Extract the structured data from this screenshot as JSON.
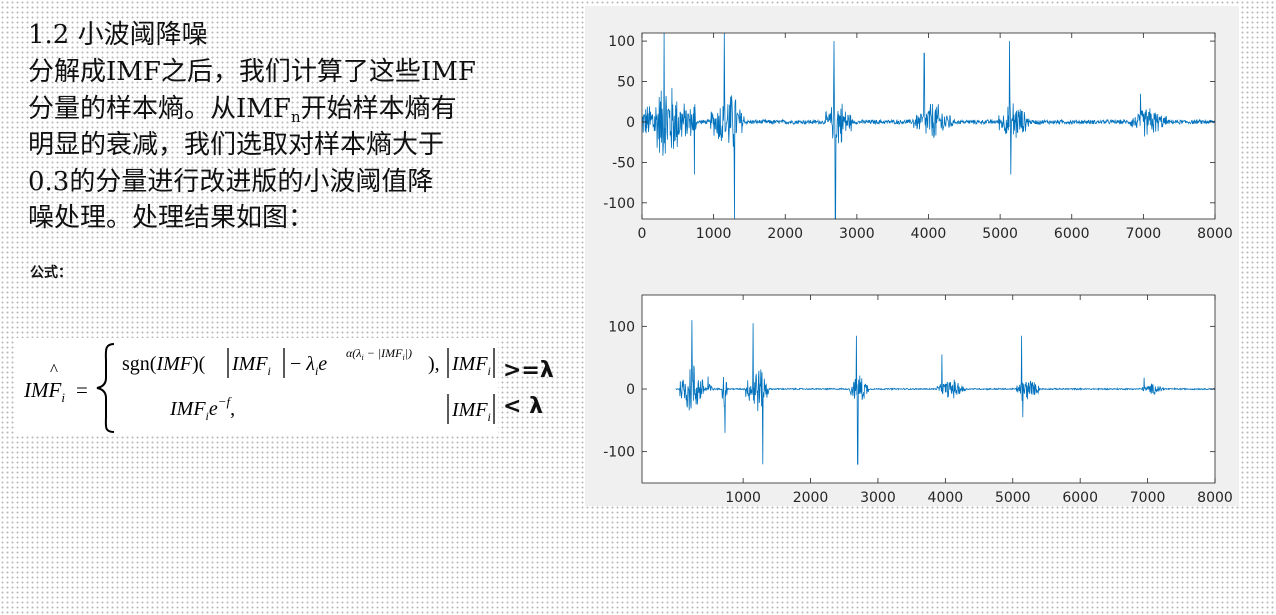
{
  "heading": "1.2 小波阈降噪",
  "paragraph": {
    "line1": "分解成IMF之后，我们计算了这些IMF",
    "line2_pre": "分量的样本熵。从IMF",
    "line2_sub": "n",
    "line2_post": "开始样本熵有",
    "line3": "明显的衰减，我们选取对样本熵大于",
    "line4": "0.3的分量进行改进版的小波阈值降",
    "line5": "噪处理。处理结果如图："
  },
  "formula_label": "公式：",
  "formula": {
    "lhs_pre": "IM",
    "lhs_hat": "F",
    "lhs_sub": "i",
    "case1_func": "sgn(",
    "case1_arg": "IMF",
    "case1_close": ")(",
    "case1_abs": "IMF",
    "case1_minus": "− ",
    "lambda": "λ",
    "exp_e": "e",
    "case1_tail": "),",
    "case2_base": "IMF",
    "case2_exp": "−f",
    "case2_comma": ",",
    "cond_abs": "IMF",
    "cond_ge": ">=λ",
    "cond_lt": "<  λ"
  },
  "chart_data": [
    {
      "type": "line",
      "title": "",
      "xlabel": "",
      "ylabel": "",
      "xlim": [
        0,
        8000
      ],
      "ylim": [
        -120,
        110
      ],
      "xticks": [
        0,
        1000,
        2000,
        3000,
        4000,
        5000,
        6000,
        7000,
        8000
      ],
      "yticks": [
        100,
        50,
        0,
        -50,
        -100
      ],
      "color": "#0072BD",
      "noise_floor": 3,
      "bursts": [
        {
          "x0": 0,
          "x1": 700,
          "amp": 55,
          "peak": 110,
          "peak_at": 310
        },
        {
          "x0": 700,
          "x1": 760,
          "amp": 40,
          "peak": -65,
          "peak_at": 730
        },
        {
          "x0": 960,
          "x1": 1430,
          "amp": 45,
          "peak": 110,
          "peak_at": 1150
        },
        {
          "x0": 1250,
          "x1": 1330,
          "amp": 60,
          "peak": -120,
          "peak_at": 1290
        },
        {
          "x0": 2560,
          "x1": 2920,
          "amp": 35,
          "peak": 100,
          "peak_at": 2680
        },
        {
          "x0": 2660,
          "x1": 2720,
          "amp": 40,
          "peak": -120,
          "peak_at": 2700
        },
        {
          "x0": 3780,
          "x1": 4340,
          "amp": 28,
          "peak": 85,
          "peak_at": 3940
        },
        {
          "x0": 4980,
          "x1": 5400,
          "amp": 30,
          "peak": 100,
          "peak_at": 5130
        },
        {
          "x0": 5100,
          "x1": 5180,
          "amp": 35,
          "peak": -65,
          "peak_at": 5150
        },
        {
          "x0": 6820,
          "x1": 7320,
          "amp": 22,
          "peak": 35,
          "peak_at": 6960
        }
      ]
    },
    {
      "type": "line",
      "title": "",
      "xlabel": "",
      "ylabel": "",
      "xlim": [
        -500,
        8000
      ],
      "ylim": [
        -150,
        150
      ],
      "xticks": [
        1000,
        2000,
        3000,
        4000,
        5000,
        6000,
        7000,
        8000
      ],
      "yticks": [
        100,
        0,
        -100
      ],
      "color": "#0072BD",
      "noise_floor": 1.2,
      "bursts": [
        {
          "x0": 60,
          "x1": 420,
          "amp": 50,
          "peak": 110,
          "peak_at": 240
        },
        {
          "x0": 420,
          "x1": 560,
          "amp": 12,
          "peak": 20,
          "peak_at": 480
        },
        {
          "x0": 690,
          "x1": 760,
          "amp": 45,
          "peak": -70,
          "peak_at": 730
        },
        {
          "x0": 1040,
          "x1": 1380,
          "amp": 45,
          "peak": 105,
          "peak_at": 1150
        },
        {
          "x0": 1260,
          "x1": 1320,
          "amp": 50,
          "peak": -120,
          "peak_at": 1290
        },
        {
          "x0": 2580,
          "x1": 2860,
          "amp": 30,
          "peak": 85,
          "peak_at": 2680
        },
        {
          "x0": 2680,
          "x1": 2720,
          "amp": 40,
          "peak": -120,
          "peak_at": 2700
        },
        {
          "x0": 3880,
          "x1": 4300,
          "amp": 18,
          "peak": 55,
          "peak_at": 3950
        },
        {
          "x0": 5050,
          "x1": 5400,
          "amp": 20,
          "peak": 85,
          "peak_at": 5130
        },
        {
          "x0": 5120,
          "x1": 5160,
          "amp": 30,
          "peak": -45,
          "peak_at": 5150
        },
        {
          "x0": 6920,
          "x1": 7250,
          "amp": 10,
          "peak": 18,
          "peak_at": 6950
        }
      ]
    }
  ]
}
